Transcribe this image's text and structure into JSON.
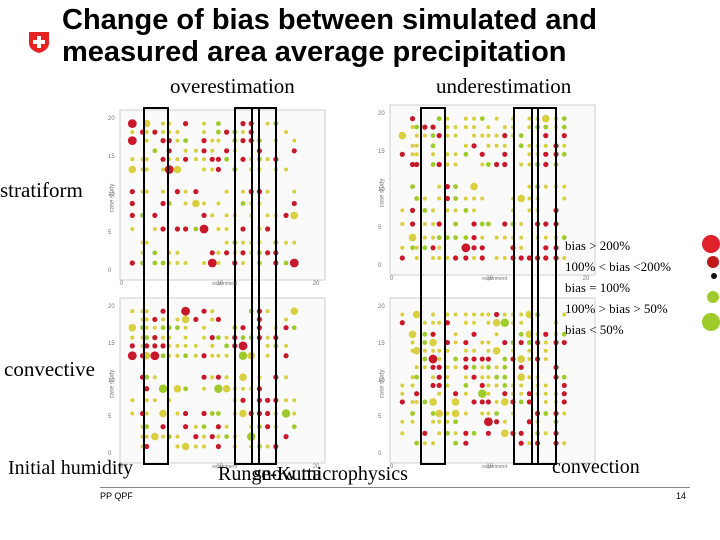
{
  "title": {
    "line1": "Change of bias between simulated and",
    "line2": "measured area average precipitation"
  },
  "header_labels": {
    "overestimation": "overestimation",
    "underestimation": "underestimation"
  },
  "row_labels": {
    "stratiform": "stratiform",
    "convective": "convective"
  },
  "column_labels": {
    "initial_humidity": "Initial humidity",
    "runge_kutta": "Runge-Kutta",
    "snow_microphysics": "snow microphysics",
    "convection": "convection"
  },
  "legend": [
    {
      "text": "bias > 200%",
      "color": "#e0202a",
      "size": "large"
    },
    {
      "text": "100% <  bias <200%",
      "color": "#c01818",
      "size": "medium"
    },
    {
      "text": "bias = 100%",
      "color": "#111111",
      "size": "small"
    },
    {
      "text": "100% > bias > 50%",
      "color": "#9ecb2a",
      "size": "medium"
    },
    {
      "text": "bias < 50%",
      "color": "#9ecb2a",
      "size": "large"
    }
  ],
  "footer": {
    "left": "PP QPF",
    "page": "14"
  },
  "colors": {
    "logo_red": "#e32421",
    "highlight_box": "#000000",
    "dot_red": "#c8182a",
    "dot_yellow": "#d8d040",
    "dot_green": "#9ecb2a"
  },
  "panels": [
    {
      "id": "stratiform-overestimation",
      "y_ticks": [
        "20",
        "15",
        "10",
        "5",
        "0"
      ],
      "x_ticks": [
        "0",
        "10",
        "20"
      ],
      "y_axis_label": "case study",
      "x_axis_label": "experiment"
    },
    {
      "id": "stratiform-underestimation",
      "y_ticks": [
        "20",
        "15",
        "10",
        "5",
        "0"
      ],
      "x_ticks": [
        "0",
        "10",
        "20"
      ],
      "y_axis_label": "case study",
      "x_axis_label": "experiment"
    },
    {
      "id": "convective-overestimation",
      "y_ticks": [
        "20",
        "15",
        "10",
        "5",
        "0"
      ],
      "x_ticks": [
        "0",
        "10",
        "20"
      ],
      "y_axis_label": "case study",
      "x_axis_label": "experiment"
    },
    {
      "id": "convective-underestimation",
      "y_ticks": [
        "20",
        "15",
        "10",
        "5",
        "0"
      ],
      "x_ticks": [
        "0",
        "10",
        "20"
      ],
      "y_axis_label": "case study",
      "x_axis_label": "experiment"
    }
  ]
}
